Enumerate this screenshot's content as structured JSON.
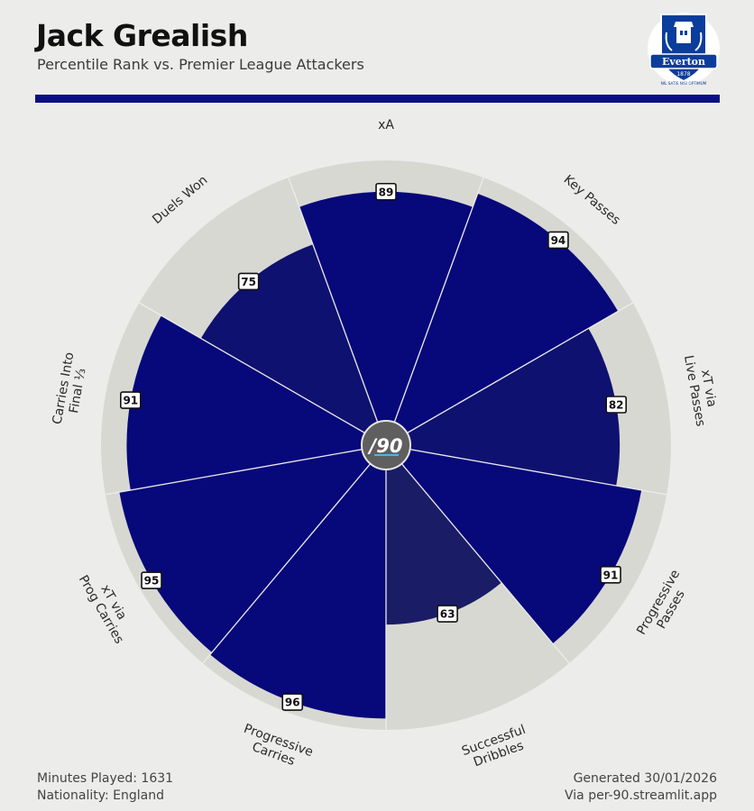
{
  "player": {
    "name": "Jack Grealish",
    "subtitle": "Percentile Rank vs. Premier League Attackers"
  },
  "club": {
    "name": "Everton",
    "founded": "1878",
    "motto": "NIL SATIS NISI OPTIMUM"
  },
  "colors": {
    "accent": "#0a1082",
    "bar_high": "#07087a",
    "bar_mid": "#0f1170",
    "bar_low": "#1a1c66",
    "track": "#d8d8d3",
    "background": "#ececea"
  },
  "center_logo": "/90",
  "footer": {
    "minutes": "Minutes Played: 1631",
    "nationality": "Nationality: England",
    "generated": "Generated 30/01/2026",
    "source": "Via per-90.streamlit.app"
  },
  "chart_data": {
    "type": "polar-bar",
    "title": "Jack Grealish",
    "subtitle": "Percentile Rank vs. Premier League Attackers",
    "rlim": [
      0,
      100
    ],
    "categories": [
      "xA",
      "Key Passes",
      "xT via Live Passes",
      "Progressive Passes",
      "Successful Dribbles",
      "Progressive Carries",
      "xT via Prog Carries",
      "Carries Into Final ⅓",
      "Duels Won"
    ],
    "category_lines": [
      [
        "xA"
      ],
      [
        "Key Passes"
      ],
      [
        "xT via",
        "Live Passes"
      ],
      [
        "Progressive",
        "Passes"
      ],
      [
        "Successful",
        "Dribbles"
      ],
      [
        "Progressive",
        "Carries"
      ],
      [
        "xT via",
        "Prog Carries"
      ],
      [
        "Carries Into",
        "Final ⅓"
      ],
      [
        "Duels Won"
      ]
    ],
    "values": [
      89,
      94,
      82,
      91,
      63,
      96,
      95,
      91,
      75
    ]
  }
}
